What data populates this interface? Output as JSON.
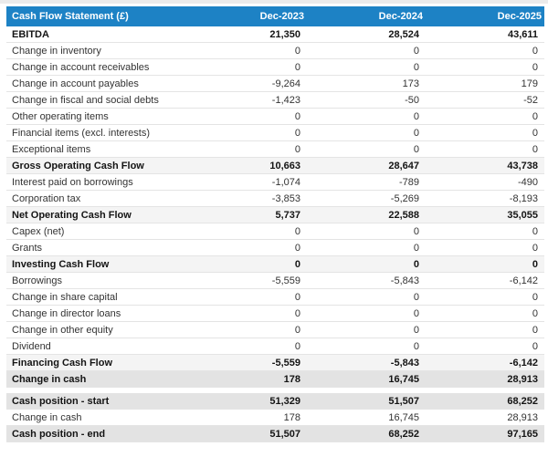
{
  "header": {
    "title": "Cash Flow Statement (£)",
    "columns": [
      "Dec-2023",
      "Dec-2024",
      "Dec-2025"
    ]
  },
  "rows": [
    {
      "label": "EBITDA",
      "values": [
        "21,350",
        "28,524",
        "43,611"
      ],
      "style": "bold"
    },
    {
      "label": "Change in inventory",
      "values": [
        "0",
        "0",
        "0"
      ],
      "style": "normal"
    },
    {
      "label": "Change in account receivables",
      "values": [
        "0",
        "0",
        "0"
      ],
      "style": "normal"
    },
    {
      "label": "Change in account payables",
      "values": [
        "-9,264",
        "173",
        "179"
      ],
      "style": "normal"
    },
    {
      "label": "Change in fiscal and social debts",
      "values": [
        "-1,423",
        "-50",
        "-52"
      ],
      "style": "normal"
    },
    {
      "label": "Other operating items",
      "values": [
        "0",
        "0",
        "0"
      ],
      "style": "normal"
    },
    {
      "label": "Financial items (excl. interests)",
      "values": [
        "0",
        "0",
        "0"
      ],
      "style": "normal"
    },
    {
      "label": "Exceptional items",
      "values": [
        "0",
        "0",
        "0"
      ],
      "style": "normal"
    },
    {
      "label": "Gross Operating Cash Flow",
      "values": [
        "10,663",
        "28,647",
        "43,738"
      ],
      "style": "subtotal"
    },
    {
      "label": "Interest paid on borrowings",
      "values": [
        "-1,074",
        "-789",
        "-490"
      ],
      "style": "normal"
    },
    {
      "label": "Corporation tax",
      "values": [
        "-3,853",
        "-5,269",
        "-8,193"
      ],
      "style": "normal"
    },
    {
      "label": "Net Operating Cash Flow",
      "values": [
        "5,737",
        "22,588",
        "35,055"
      ],
      "style": "subtotal"
    },
    {
      "label": "Capex (net)",
      "values": [
        "0",
        "0",
        "0"
      ],
      "style": "normal"
    },
    {
      "label": "Grants",
      "values": [
        "0",
        "0",
        "0"
      ],
      "style": "normal"
    },
    {
      "label": "Investing Cash Flow",
      "values": [
        "0",
        "0",
        "0"
      ],
      "style": "subtotal"
    },
    {
      "label": "Borrowings",
      "values": [
        "-5,559",
        "-5,843",
        "-6,142"
      ],
      "style": "normal"
    },
    {
      "label": "Change in share capital",
      "values": [
        "0",
        "0",
        "0"
      ],
      "style": "normal"
    },
    {
      "label": "Change in director loans",
      "values": [
        "0",
        "0",
        "0"
      ],
      "style": "normal"
    },
    {
      "label": "Change in other equity",
      "values": [
        "0",
        "0",
        "0"
      ],
      "style": "normal"
    },
    {
      "label": "Dividend",
      "values": [
        "0",
        "0",
        "0"
      ],
      "style": "normal"
    },
    {
      "label": "Financing Cash Flow",
      "values": [
        "-5,559",
        "-5,843",
        "-6,142"
      ],
      "style": "subtotal"
    },
    {
      "label": "Change in cash",
      "values": [
        "178",
        "16,745",
        "28,913"
      ],
      "style": "emphasis"
    },
    {
      "style": "spacer"
    },
    {
      "label": "Cash position - start",
      "values": [
        "51,329",
        "51,507",
        "68,252"
      ],
      "style": "emphasis"
    },
    {
      "label": "Change in cash",
      "values": [
        "178",
        "16,745",
        "28,913"
      ],
      "style": "normal"
    },
    {
      "label": "Cash position - end",
      "values": [
        "51,507",
        "68,252",
        "97,165"
      ],
      "style": "emphasis"
    }
  ],
  "colors": {
    "header_bg": "#1d82c5",
    "header_text": "#ffffff",
    "subtotal_bg": "#f4f4f4",
    "emphasis_bg": "#e3e3e3",
    "row_border": "#e4e4e4"
  }
}
